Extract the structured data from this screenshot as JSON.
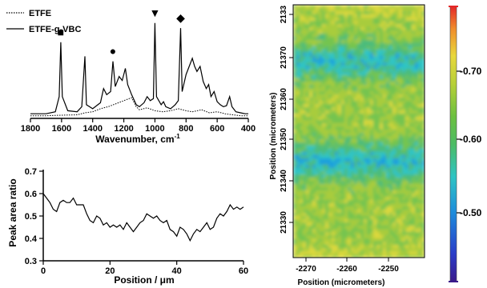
{
  "chart_data": [
    {
      "type": "line",
      "xlabel": "Wavenumber, cm-1",
      "x_ticks": [
        "1800",
        "1600",
        "1400",
        "1200",
        "1000",
        "800",
        "600",
        "400"
      ],
      "xlim": [
        1800,
        400
      ],
      "legend_position": "top-left",
      "series": [
        {
          "name": "ETFE",
          "style": "dotted",
          "points": [
            [
              1800,
              0.01
            ],
            [
              1700,
              0.01
            ],
            [
              1620,
              0.015
            ],
            [
              1500,
              0.02
            ],
            [
              1450,
              0.04
            ],
            [
              1400,
              0.05
            ],
            [
              1350,
              0.08
            ],
            [
              1300,
              0.1
            ],
            [
              1250,
              0.13
            ],
            [
              1200,
              0.16
            ],
            [
              1150,
              0.19
            ],
            [
              1120,
              0.1
            ],
            [
              1100,
              0.07
            ],
            [
              1050,
              0.09
            ],
            [
              1000,
              0.06
            ],
            [
              950,
              0.05
            ],
            [
              900,
              0.06
            ],
            [
              850,
              0.08
            ],
            [
              800,
              0.06
            ],
            [
              760,
              0.05
            ],
            [
              700,
              0.07
            ],
            [
              650,
              0.04
            ],
            [
              600,
              0.05
            ],
            [
              550,
              0.03
            ],
            [
              500,
              0.02
            ],
            [
              450,
              0.01
            ],
            [
              400,
              0.01
            ]
          ]
        },
        {
          "name": "ETFE-g-VBC",
          "style": "solid",
          "points": [
            [
              1800,
              0.03
            ],
            [
              1700,
              0.03
            ],
            [
              1640,
              0.05
            ],
            [
              1615,
              0.2
            ],
            [
              1605,
              0.74
            ],
            [
              1595,
              0.2
            ],
            [
              1560,
              0.06
            ],
            [
              1500,
              0.05
            ],
            [
              1470,
              0.1
            ],
            [
              1450,
              0.6
            ],
            [
              1440,
              0.12
            ],
            [
              1400,
              0.08
            ],
            [
              1350,
              0.14
            ],
            [
              1330,
              0.28
            ],
            [
              1310,
              0.22
            ],
            [
              1285,
              0.25
            ],
            [
              1270,
              0.55
            ],
            [
              1255,
              0.3
            ],
            [
              1230,
              0.4
            ],
            [
              1210,
              0.36
            ],
            [
              1190,
              0.48
            ],
            [
              1175,
              0.32
            ],
            [
              1150,
              0.22
            ],
            [
              1120,
              0.12
            ],
            [
              1100,
              0.1
            ],
            [
              1070,
              0.14
            ],
            [
              1050,
              0.2
            ],
            [
              1030,
              0.16
            ],
            [
              1010,
              0.18
            ],
            [
              1000,
              0.93
            ],
            [
              990,
              0.2
            ],
            [
              960,
              0.12
            ],
            [
              945,
              0.15
            ],
            [
              930,
              0.1
            ],
            [
              900,
              0.08
            ],
            [
              870,
              0.12
            ],
            [
              850,
              0.16
            ],
            [
              835,
              0.88
            ],
            [
              825,
              0.25
            ],
            [
              800,
              0.42
            ],
            [
              780,
              0.5
            ],
            [
              760,
              0.58
            ],
            [
              745,
              0.5
            ],
            [
              730,
              0.45
            ],
            [
              710,
              0.5
            ],
            [
              690,
              0.35
            ],
            [
              670,
              0.28
            ],
            [
              655,
              0.32
            ],
            [
              640,
              0.2
            ],
            [
              620,
              0.25
            ],
            [
              600,
              0.15
            ],
            [
              580,
              0.12
            ],
            [
              560,
              0.1
            ],
            [
              540,
              0.11
            ],
            [
              520,
              0.2
            ],
            [
              505,
              0.1
            ],
            [
              480,
              0.05
            ],
            [
              450,
              0.04
            ],
            [
              420,
              0.03
            ],
            [
              400,
              0.03
            ]
          ]
        }
      ],
      "markers": [
        {
          "x": 1605,
          "glyph": "■",
          "color": "#000000"
        },
        {
          "x": 1270,
          "glyph": "●",
          "color": "#000000"
        },
        {
          "x": 1000,
          "glyph": "▼",
          "color": "#000000"
        },
        {
          "x": 835,
          "glyph": "◆",
          "color": "#000000"
        }
      ]
    },
    {
      "type": "line",
      "xlabel": "Position / μm",
      "ylabel": "Peak area ratio",
      "xlim": [
        0,
        60
      ],
      "ylim": [
        0.3,
        0.7
      ],
      "x_ticks": [
        0,
        20,
        40,
        60
      ],
      "y_ticks": [
        "0.3",
        "0.4",
        "0.5",
        "0.6",
        "0.7"
      ],
      "series": [
        {
          "name": "",
          "points": [
            [
              0,
              0.6
            ],
            [
              1,
              0.58
            ],
            [
              2,
              0.56
            ],
            [
              3,
              0.53
            ],
            [
              4,
              0.52
            ],
            [
              5,
              0.56
            ],
            [
              6,
              0.57
            ],
            [
              7,
              0.56
            ],
            [
              8,
              0.56
            ],
            [
              9,
              0.58
            ],
            [
              10,
              0.55
            ],
            [
              11,
              0.55
            ],
            [
              12,
              0.55
            ],
            [
              13,
              0.51
            ],
            [
              14,
              0.48
            ],
            [
              15,
              0.47
            ],
            [
              16,
              0.5
            ],
            [
              17,
              0.49
            ],
            [
              18,
              0.46
            ],
            [
              19,
              0.47
            ],
            [
              20,
              0.45
            ],
            [
              21,
              0.46
            ],
            [
              22,
              0.45
            ],
            [
              23,
              0.46
            ],
            [
              24,
              0.44
            ],
            [
              25,
              0.47
            ],
            [
              26,
              0.45
            ],
            [
              27,
              0.43
            ],
            [
              28,
              0.45
            ],
            [
              29,
              0.47
            ],
            [
              30,
              0.48
            ],
            [
              31,
              0.51
            ],
            [
              32,
              0.5
            ],
            [
              33,
              0.49
            ],
            [
              34,
              0.5
            ],
            [
              35,
              0.48
            ],
            [
              36,
              0.47
            ],
            [
              37,
              0.48
            ],
            [
              38,
              0.44
            ],
            [
              39,
              0.43
            ],
            [
              40,
              0.41
            ],
            [
              41,
              0.45
            ],
            [
              42,
              0.44
            ],
            [
              43,
              0.42
            ],
            [
              44,
              0.39
            ],
            [
              45,
              0.42
            ],
            [
              46,
              0.44
            ],
            [
              47,
              0.43
            ],
            [
              48,
              0.45
            ],
            [
              49,
              0.47
            ],
            [
              50,
              0.44
            ],
            [
              51,
              0.45
            ],
            [
              52,
              0.49
            ],
            [
              53,
              0.51
            ],
            [
              54,
              0.5
            ],
            [
              55,
              0.52
            ],
            [
              56,
              0.55
            ],
            [
              57,
              0.53
            ],
            [
              58,
              0.54
            ],
            [
              59,
              0.53
            ],
            [
              60,
              0.54
            ]
          ]
        }
      ]
    },
    {
      "type": "heatmap",
      "xlabel": "Position (micrometers)",
      "ylabel": "Position (micrometers)",
      "x_ticks": [
        "-2270",
        "-2260",
        "-2250"
      ],
      "y_ticks": [
        "2133",
        "21370",
        "21360",
        "21350",
        "21340",
        "21330"
      ],
      "colorbar_ticks": [
        "0.70",
        "0.60",
        "0.50"
      ],
      "colormap": [
        "#2a2ab4",
        "#1e64dc",
        "#1ea0dc",
        "#2ec4c4",
        "#4cbc7c",
        "#74c450",
        "#a8cc3c",
        "#dcd83c",
        "#f0a030",
        "#e83c28"
      ]
    }
  ]
}
